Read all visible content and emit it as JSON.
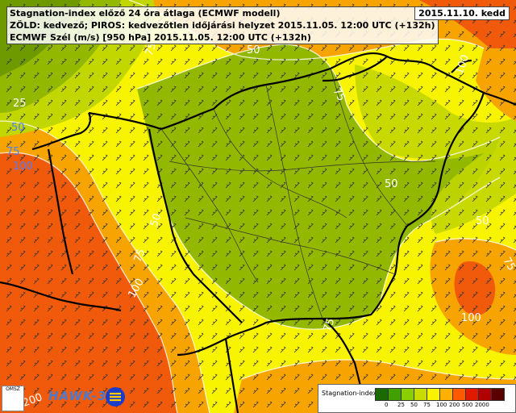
{
  "header": {
    "line1": "Stagnation-index előző 24 óra átlaga (ECMWF modell)",
    "line2": "ZÖLD: kedvező; PIROS: kedvezőtlen időjárási helyzet 2015.11.05. 12:00 UTC (+132h)",
    "line3": "ECMWF Szél (m/s) [950 hPa] 2015.11.05. 12:00 UTC (+132h)"
  },
  "valid_date": "2015.11.10. kedd",
  "contour_labels": [
    "25",
    "50",
    "75",
    "100",
    "75",
    "75",
    "50",
    "100",
    "50",
    "75",
    "100",
    "50",
    "75",
    "100",
    "200",
    "50",
    "75",
    "100",
    "75",
    "200"
  ],
  "legend": {
    "title": "Stagnation-index",
    "labels": [
      "0",
      "25",
      "50",
      "75",
      "100",
      "200",
      "500",
      "2000"
    ],
    "colors": [
      "#1a6a00",
      "#3fa000",
      "#8ad000",
      "#c8dc00",
      "#f8f400",
      "#ffb000",
      "#ff5a00",
      "#e01a00",
      "#b00000",
      "#5a0000"
    ]
  },
  "colors": {
    "dark_green": "#6e9a00",
    "green": "#92b800",
    "yellow_green": "#c2d600",
    "yellow": "#f8f400",
    "orange": "#f8a400",
    "red": "#f05a0a",
    "dark_red": "#e03a0a"
  },
  "logos": {
    "omsz": "OMSZ",
    "hawk": "HAWK-3"
  }
}
